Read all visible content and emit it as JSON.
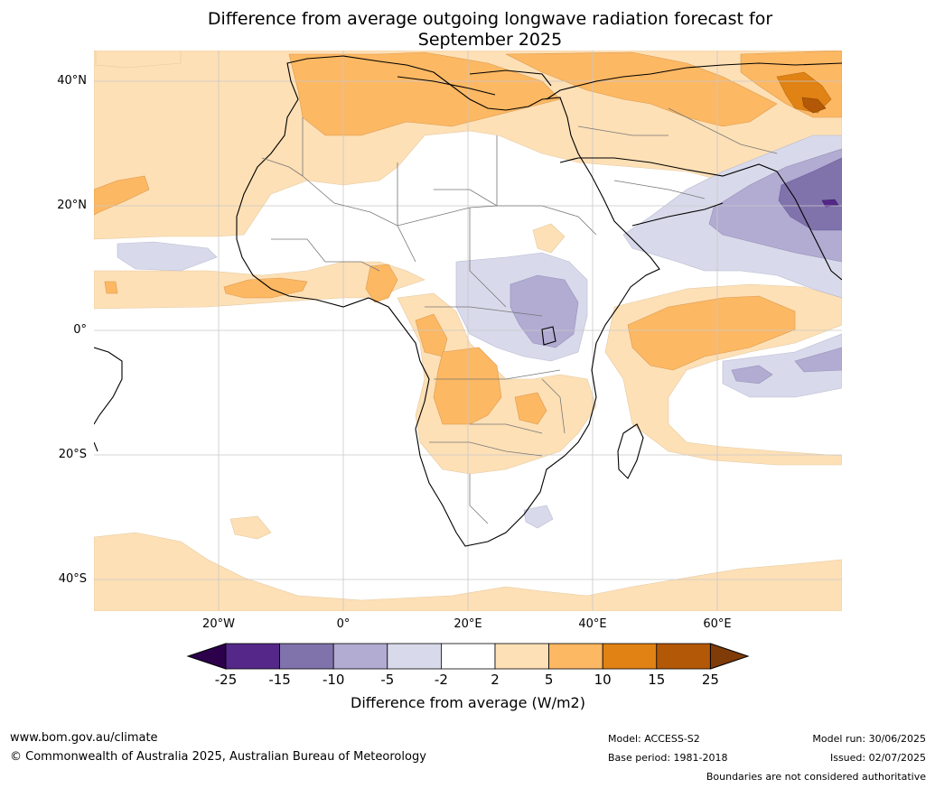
{
  "title": {
    "line1": "Difference from average outgoing longwave radiation forecast for",
    "line2": "September 2025"
  },
  "map": {
    "lat_labels": [
      "40°N",
      "20°N",
      "0°",
      "20°S",
      "40°S"
    ],
    "lon_labels": [
      "20°W",
      "0°",
      "20°E",
      "40°E",
      "60°E"
    ]
  },
  "colorbar": {
    "label": "Difference from average (W/m2)",
    "ticks": [
      "-25",
      "-15",
      "-10",
      "-5",
      "-2",
      "2",
      "5",
      "10",
      "15",
      "25"
    ],
    "colors": {
      "below_min": "#2d004b",
      "c1": "#542788",
      "c2": "#8073ac",
      "c3": "#b2abd2",
      "c4": "#d8daeb",
      "c5": "#ffffff",
      "c6": "#fee0b6",
      "c7": "#fdb863",
      "c8": "#e08214",
      "c9": "#b35806",
      "above_max": "#7f3b08"
    }
  },
  "footer": {
    "website": "www.bom.gov.au/climate",
    "copyright": "© Commonwealth of Australia 2025, Australian Bureau of Meteorology",
    "model": "Model: ACCESS-S2",
    "base_period": "Base period: 1981-2018",
    "model_run": "Model run: 30/06/2025",
    "issued": "Issued: 02/07/2025",
    "disclaimer": "Boundaries are not considered authoritative"
  }
}
